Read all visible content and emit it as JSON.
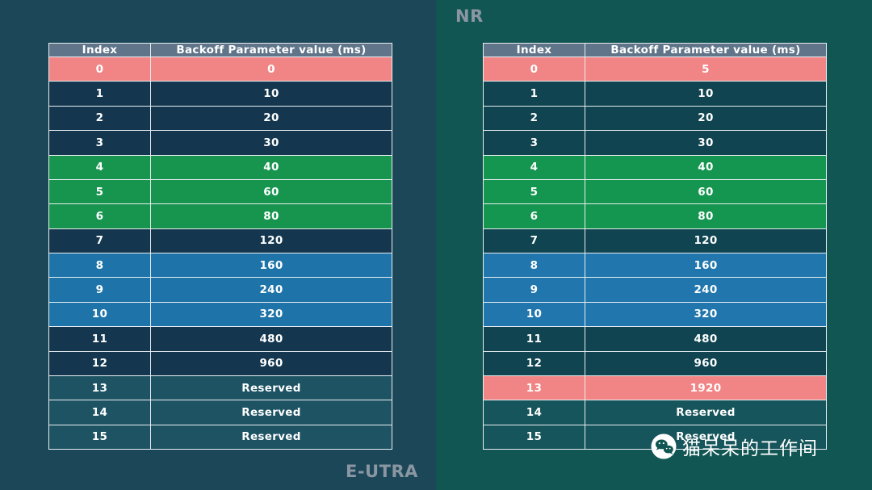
{
  "background": {
    "left_color": "#1c4759",
    "right_color": "#115653"
  },
  "labels": {
    "label_color": "#8a97a2"
  },
  "chart_data": [
    {
      "type": "table",
      "title": "E-UTRA",
      "title_position": "bottom-right-of-table",
      "columns": [
        "Index",
        "Backoff Parameter value (ms)"
      ],
      "rows": [
        {
          "index": "0",
          "value": "0",
          "tone": "salmon"
        },
        {
          "index": "1",
          "value": "10",
          "tone": "navy"
        },
        {
          "index": "2",
          "value": "20",
          "tone": "navy"
        },
        {
          "index": "3",
          "value": "30",
          "tone": "navy"
        },
        {
          "index": "4",
          "value": "40",
          "tone": "green"
        },
        {
          "index": "5",
          "value": "60",
          "tone": "green"
        },
        {
          "index": "6",
          "value": "80",
          "tone": "green"
        },
        {
          "index": "7",
          "value": "120",
          "tone": "navy"
        },
        {
          "index": "8",
          "value": "160",
          "tone": "blue"
        },
        {
          "index": "9",
          "value": "240",
          "tone": "blue"
        },
        {
          "index": "10",
          "value": "320",
          "tone": "blue"
        },
        {
          "index": "11",
          "value": "480",
          "tone": "navy"
        },
        {
          "index": "12",
          "value": "960",
          "tone": "navy"
        },
        {
          "index": "13",
          "value": "Reserved",
          "tone": "teal"
        },
        {
          "index": "14",
          "value": "Reserved",
          "tone": "teal"
        },
        {
          "index": "15",
          "value": "Reserved",
          "tone": "teal"
        }
      ],
      "tone_colors": {
        "header": "#60758a",
        "salmon": "#f18585",
        "navy": "#14374f",
        "green": "#17954f",
        "blue": "#1e74a9",
        "teal": "#1d5363"
      }
    },
    {
      "type": "table",
      "title": "NR",
      "title_position": "top-left-of-table",
      "columns": [
        "Index",
        "Backoff Parameter value (ms)"
      ],
      "rows": [
        {
          "index": "0",
          "value": "5",
          "tone": "salmon"
        },
        {
          "index": "1",
          "value": "10",
          "tone": "navy"
        },
        {
          "index": "2",
          "value": "20",
          "tone": "navy"
        },
        {
          "index": "3",
          "value": "30",
          "tone": "navy"
        },
        {
          "index": "4",
          "value": "40",
          "tone": "green"
        },
        {
          "index": "5",
          "value": "60",
          "tone": "green"
        },
        {
          "index": "6",
          "value": "80",
          "tone": "green"
        },
        {
          "index": "7",
          "value": "120",
          "tone": "navy"
        },
        {
          "index": "8",
          "value": "160",
          "tone": "blue"
        },
        {
          "index": "9",
          "value": "240",
          "tone": "blue"
        },
        {
          "index": "10",
          "value": "320",
          "tone": "blue"
        },
        {
          "index": "11",
          "value": "480",
          "tone": "navy"
        },
        {
          "index": "12",
          "value": "960",
          "tone": "navy"
        },
        {
          "index": "13",
          "value": "1920",
          "tone": "salmon"
        },
        {
          "index": "14",
          "value": "Reserved",
          "tone": "teal"
        },
        {
          "index": "15",
          "value": "Reserved",
          "tone": "teal"
        }
      ],
      "tone_colors": {
        "header": "#60758a",
        "salmon": "#f18585",
        "navy": "#0f4450",
        "green": "#149650",
        "blue": "#2177ad",
        "teal": "#16555b"
      }
    }
  ],
  "watermark": {
    "icon": "wechat-icon",
    "text": "猫呆呆的工作间"
  }
}
